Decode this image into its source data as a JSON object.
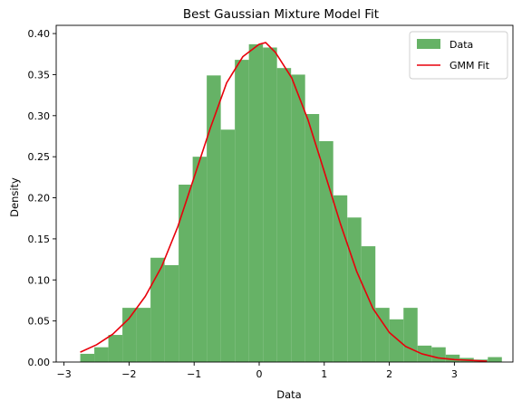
{
  "chart_data": {
    "type": "bar",
    "title": "Best Gaussian Mixture Model Fit",
    "xlabel": "Data",
    "ylabel": "Density",
    "xlim": [
      -3.12,
      3.9
    ],
    "ylim": [
      0,
      0.41
    ],
    "xticks": [
      -3,
      -2,
      -1,
      0,
      1,
      2,
      3
    ],
    "xtick_labels": [
      "−3",
      "−2",
      "−1",
      "0",
      "1",
      "2",
      "3"
    ],
    "yticks": [
      0,
      0.05,
      0.1,
      0.15,
      0.2,
      0.25,
      0.3,
      0.35,
      0.4
    ],
    "ytick_labels": [
      "0.00",
      "0.05",
      "0.10",
      "0.15",
      "0.20",
      "0.25",
      "0.30",
      "0.35",
      "0.40"
    ],
    "grid": false,
    "legend_position": "top-right",
    "colors": {
      "bars": "#66b266",
      "line": "#e8000b"
    },
    "series": [
      {
        "name": "Data",
        "kind": "histogram",
        "bin_edges": [
          -2.75,
          -2.534,
          -2.318,
          -2.102,
          -1.886,
          -1.67,
          -1.454,
          -1.238,
          -1.022,
          -0.806,
          -0.59,
          -0.374,
          -0.158,
          0.058,
          0.274,
          0.49,
          0.706,
          0.922,
          1.138,
          1.354,
          1.57,
          1.786,
          2.002,
          2.218,
          2.434,
          2.65,
          2.866,
          3.082,
          3.298,
          3.514,
          3.73
        ],
        "values": [
          0.01,
          0.018,
          0.033,
          0.066,
          0.066,
          0.127,
          0.118,
          0.216,
          0.25,
          0.349,
          0.283,
          0.368,
          0.387,
          0.383,
          0.358,
          0.35,
          0.302,
          0.269,
          0.203,
          0.176,
          0.141,
          0.066,
          0.052,
          0.066,
          0.02,
          0.018,
          0.009,
          0.005,
          0.003,
          0.006
        ]
      },
      {
        "name": "GMM Fit",
        "kind": "line",
        "x": [
          -2.75,
          -2.5,
          -2.25,
          -2.0,
          -1.75,
          -1.5,
          -1.25,
          -1.0,
          -0.75,
          -0.5,
          -0.25,
          0.0,
          0.1,
          0.25,
          0.5,
          0.75,
          1.0,
          1.25,
          1.5,
          1.75,
          2.0,
          2.25,
          2.5,
          2.75,
          3.0,
          3.25,
          3.5
        ],
        "y": [
          0.012,
          0.021,
          0.034,
          0.053,
          0.08,
          0.116,
          0.165,
          0.225,
          0.285,
          0.34,
          0.372,
          0.387,
          0.389,
          0.377,
          0.346,
          0.295,
          0.232,
          0.168,
          0.11,
          0.065,
          0.036,
          0.019,
          0.01,
          0.005,
          0.003,
          0.002,
          0.001
        ]
      }
    ]
  }
}
